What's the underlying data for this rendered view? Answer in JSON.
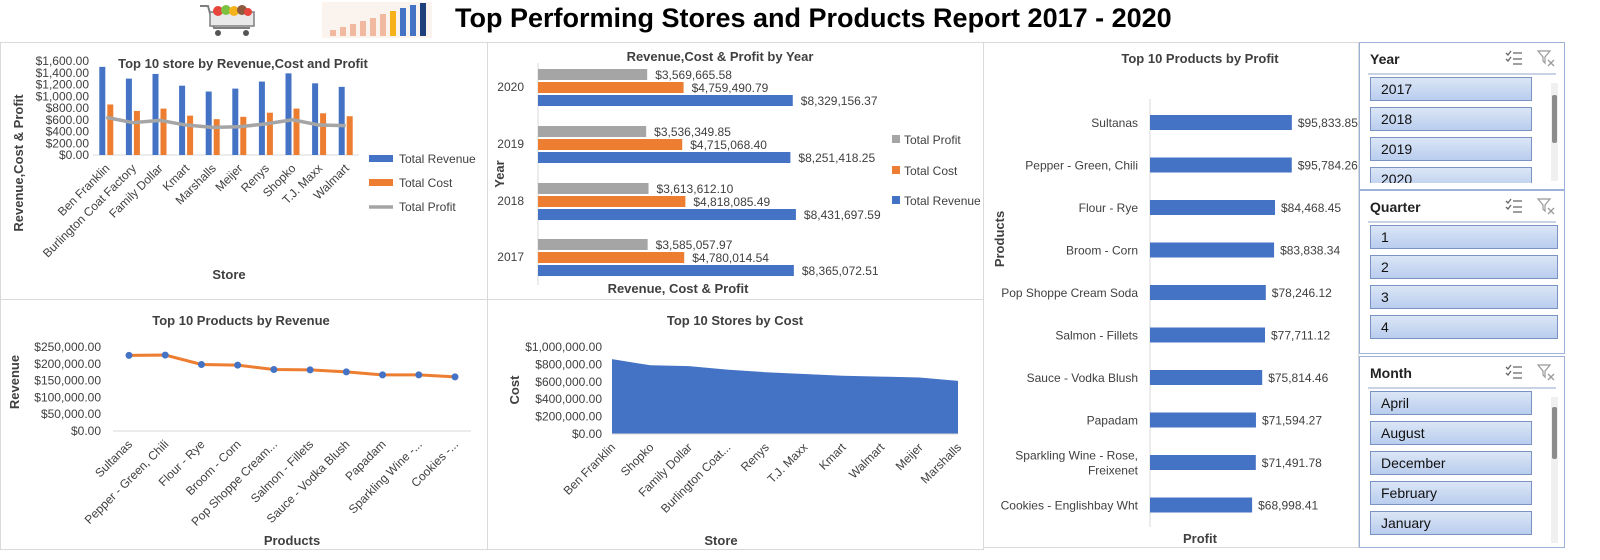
{
  "report_title": "Top Performing Stores and Products Report 2017 - 2020",
  "colors": {
    "revenue": "#4472c4",
    "cost": "#ed7d31",
    "profit": "#a5a5a5",
    "accent_line": "#ed7d31"
  },
  "chart_data": [
    {
      "type": "bar",
      "title": "Top 10 store by Revenue,Cost and Profit",
      "xlabel": "Store",
      "ylabel": "Revenue,Cost & Profit",
      "categories": [
        "Ben Franklin",
        "Burlington Coat Factory",
        "Family Dollar",
        "Kmart",
        "Marshalls",
        "Meijer",
        "Renys",
        "Shopko",
        "T.J. Maxx",
        "Walmart"
      ],
      "series": [
        {
          "name": "Total Revenue",
          "values": [
            1500,
            1300,
            1380,
            1180,
            1080,
            1130,
            1250,
            1390,
            1220,
            1160
          ]
        },
        {
          "name": "Total Cost",
          "values": [
            860,
            750,
            790,
            670,
            610,
            650,
            720,
            790,
            710,
            660
          ]
        },
        {
          "name": "Total Profit",
          "values": [
            640,
            550,
            590,
            510,
            470,
            480,
            530,
            600,
            510,
            500
          ]
        }
      ],
      "ylim": [
        0,
        1600
      ],
      "yticks": [
        "$1,600.00",
        "$1,400.00",
        "$1,200.00",
        "$1,000.00",
        "$800.00",
        "$600.00",
        "$400.00",
        "$200.00",
        "$0.00"
      ],
      "legend": "right"
    },
    {
      "type": "bar",
      "title": "Revenue,Cost & Profit by Year",
      "xlabel": "Revenue, Cost & Profit",
      "ylabel": "Year",
      "categories": [
        "2020",
        "2019",
        "2018",
        "2017"
      ],
      "series": [
        {
          "name": "Total Profit",
          "values": [
            3569665.58,
            3536349.85,
            3613612.1,
            3585057.97
          ],
          "labels": [
            "$3,569,665.58",
            "$3,536,349.85",
            "$3,613,612.10",
            "$3,585,057.97"
          ]
        },
        {
          "name": "Total Cost",
          "values": [
            4759490.79,
            4715068.4,
            4818085.49,
            4780014.54
          ],
          "labels": [
            "$4,759,490.79",
            "$4,715,068.40",
            "$4,818,085.49",
            "$4,780,014.54"
          ]
        },
        {
          "name": "Total Revenue",
          "values": [
            8329156.37,
            8251418.25,
            8431697.59,
            8365072.51
          ],
          "labels": [
            "$8,329,156.37",
            "$8,251,418.25",
            "$8,431,697.59",
            "$8,365,072.51"
          ]
        }
      ],
      "xlim": [
        0,
        8500000
      ],
      "legend": "right"
    },
    {
      "type": "bar",
      "title": "Top 10 Products by Profit",
      "xlabel": "Profit",
      "ylabel": "Products",
      "categories": [
        "Sultanas",
        "Pepper - Green, Chili",
        "Flour - Rye",
        "Broom - Corn",
        "Pop Shoppe Cream Soda",
        "Salmon - Fillets",
        "Sauce - Vodka Blush",
        "Papadam",
        "Sparkling Wine - Rose, Freixenet",
        "Cookies - Englishbay Wht"
      ],
      "category_lines": [
        [
          "Sultanas"
        ],
        [
          "Pepper - Green, Chili"
        ],
        [
          "Flour - Rye"
        ],
        [
          "Broom - Corn"
        ],
        [
          "Pop Shoppe Cream Soda"
        ],
        [
          "Salmon - Fillets"
        ],
        [
          "Sauce - Vodka Blush"
        ],
        [
          "Papadam"
        ],
        [
          "Sparkling Wine - Rose,",
          "Freixenet"
        ],
        [
          "Cookies - Englishbay Wht"
        ]
      ],
      "values": [
        95833.85,
        95784.26,
        84468.45,
        83838.34,
        78246.12,
        77711.12,
        75814.46,
        71594.27,
        71491.78,
        68998.41
      ],
      "labels": [
        "$95,833.85",
        "$95,784.26",
        "$84,468.45",
        "$83,838.34",
        "$78,246.12",
        "$77,711.12",
        "$75,814.46",
        "$71,594.27",
        "$71,491.78",
        "$68,998.41"
      ],
      "xlim": [
        0,
        100000
      ]
    },
    {
      "type": "line",
      "title": "Top 10 Products by Revenue",
      "xlabel": "Products",
      "ylabel": "Revenue",
      "categories": [
        "Sultanas",
        "Pepper - Green, Chili",
        "Flour - Rye",
        "Broom - Corn",
        "Pop Shoppe Cream...",
        "Salmon - Fillets",
        "Sauce - Vodka Blush",
        "Papadam",
        "Sparkling Wine -...",
        "Cookies -..."
      ],
      "values": [
        225000,
        226000,
        198000,
        196000,
        183000,
        182000,
        176000,
        167000,
        167000,
        161000
      ],
      "ylim": [
        0,
        250000
      ],
      "yticks": [
        "$250,000.00",
        "$200,000.00",
        "$150,000.00",
        "$100,000.00",
        "$50,000.00",
        "$0.00"
      ]
    },
    {
      "type": "area",
      "title": "Top 10 Stores by Cost",
      "xlabel": "Store",
      "ylabel": "Cost",
      "categories": [
        "Ben Franklin",
        "Shopko",
        "Family Dollar",
        "Burlington Coat...",
        "Renys",
        "T.J. Maxx",
        "Kmart",
        "Walmart",
        "Meijer",
        "Marshalls"
      ],
      "values": [
        860000,
        790000,
        780000,
        740000,
        710000,
        690000,
        670000,
        660000,
        650000,
        610000
      ],
      "ylim": [
        0,
        1000000
      ],
      "yticks": [
        "$1,000,000.00",
        "$800,000.00",
        "$600,000.00",
        "$400,000.00",
        "$200,000.00",
        "$0.00"
      ]
    }
  ],
  "slicers": {
    "year": {
      "title": "Year",
      "items": [
        "2017",
        "2018",
        "2019",
        "2020"
      ]
    },
    "quarter": {
      "title": "Quarter",
      "items": [
        "1",
        "2",
        "3",
        "4"
      ]
    },
    "month": {
      "title": "Month",
      "items": [
        "April",
        "August",
        "December",
        "February",
        "January"
      ]
    }
  }
}
